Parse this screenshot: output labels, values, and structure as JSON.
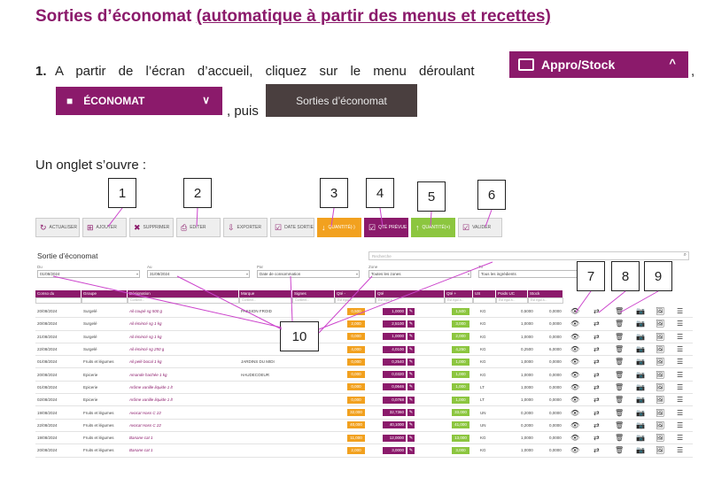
{
  "doc": {
    "title_plain": "Sorties d’économat ",
    "title_underlined": "(automatique à partir des menus et recettes)",
    "step_number": "1.",
    "step_text": "A partir de l’écran d’accueil, cliquez sur le menu déroulant",
    "comma": ",",
    "puis": ", puis",
    "onglet": "Un onglet s’ouvre :"
  },
  "menu_buttons": {
    "appro": "Appro/Stock",
    "appro_chevron": "^",
    "economat": "ÉCONOMAT",
    "economat_chevron": "∨",
    "sorties": "Sorties d’économat"
  },
  "callouts": [
    "1",
    "2",
    "3",
    "4",
    "5",
    "6",
    "7",
    "8",
    "9",
    "10"
  ],
  "toolbar": [
    {
      "label": "ACTUALISER",
      "glyph": "↻",
      "style": "grey"
    },
    {
      "label": "AJOUTER",
      "glyph": "⊞",
      "style": "grey"
    },
    {
      "label": "SUPPRIMER",
      "glyph": "✖",
      "style": "grey"
    },
    {
      "label": "EDITER",
      "glyph": "⎙",
      "style": "grey"
    },
    {
      "label": "EXPORTER",
      "glyph": "⇩",
      "style": "grey"
    },
    {
      "label": "DATE SORTIE",
      "glyph": "☑",
      "style": "grey"
    },
    {
      "label": "QUANTITÉ(-)",
      "glyph": "↓",
      "style": "orange"
    },
    {
      "label": "QTÉ PRÉVUE",
      "glyph": "☑",
      "style": "purple"
    },
    {
      "label": "QUANTITÉ(+)",
      "glyph": "↑",
      "style": "green"
    },
    {
      "label": "VALIDER",
      "glyph": "☑",
      "style": "grey"
    }
  ],
  "app": {
    "title": "Sortie d’économat",
    "search_placeholder": "Recherche",
    "filters": {
      "du_label": "Du",
      "du_value": "01/08/2024",
      "au_label": "Au",
      "au_value": "31/08/2024",
      "par_label": "Par",
      "par_value": "Date de consommation",
      "zone_label": "Zone",
      "zone_value": "Toutes les zones",
      "tri_label": "Tri",
      "tri_value": "Tous les ingrédients"
    },
    "columns": [
      "Conso du",
      "Groupe",
      "Désignation",
      "Marque",
      "Signes",
      "Qté -",
      "Qté",
      "Qté +",
      "US",
      "Poids UC",
      "Stock"
    ],
    "subfilters": [
      "",
      "",
      "Contient...",
      "Contient...",
      "Contient...",
      "Est égal à...",
      "Est égal à...",
      "Est égal à...",
      "",
      "Est égal à...",
      "Est égal à..."
    ],
    "rows": [
      {
        "date": "20/08/2024",
        "groupe": "Surgelé",
        "des": "Ail coupé sg 500 g",
        "marque": "PASSION FROID",
        "qm": "0,500",
        "q": "1,0000",
        "qp": "1,500",
        "us": "KG",
        "poids": "0,5000",
        "stock": "0,0000"
      },
      {
        "date": "20/08/2024",
        "groupe": "Surgelé",
        "des": "Ail émincé sg 1 kg",
        "marque": "",
        "qm": "2,000",
        "q": "2,5100",
        "qp": "3,000",
        "us": "KG",
        "poids": "1,0000",
        "stock": "0,0000"
      },
      {
        "date": "21/08/2024",
        "groupe": "Surgelé",
        "des": "Ail émincé sg 1 kg",
        "marque": "",
        "qm": "0,000",
        "q": "1,0000",
        "qp": "2,000",
        "us": "KG",
        "poids": "1,0000",
        "stock": "0,0000"
      },
      {
        "date": "22/08/2024",
        "groupe": "Surgelé",
        "des": "Ail émincé sg 250 g",
        "marque": "",
        "qm": "4,000",
        "q": "4,0100",
        "qp": "4,250",
        "us": "KG",
        "poids": "0,2500",
        "stock": "6,0000"
      },
      {
        "date": "01/08/2024",
        "groupe": "Fruits et légumes",
        "des": "Ail pelé bocal 1 kg",
        "marque": "JARDINS DU MIDI",
        "qm": "0,000",
        "q": "0,2540",
        "qp": "1,000",
        "us": "KG",
        "poids": "1,0000",
        "stock": "0,0000"
      },
      {
        "date": "20/08/2024",
        "groupe": "Epicerie",
        "des": "Amande hachée 1 kg",
        "marque": "HAUDECOEUR",
        "qm": "0,000",
        "q": "0,0320",
        "qp": "1,000",
        "us": "KG",
        "poids": "1,0000",
        "stock": "0,0000"
      },
      {
        "date": "01/08/2024",
        "groupe": "Epicerie",
        "des": "Arôme vanille liquide 1 lt",
        "marque": "",
        "qm": "0,000",
        "q": "0,0646",
        "qp": "1,000",
        "us": "LT",
        "poids": "1,0000",
        "stock": "0,0000"
      },
      {
        "date": "02/08/2024",
        "groupe": "Epicerie",
        "des": "Arôme vanille liquide 1 lt",
        "marque": "",
        "qm": "0,000",
        "q": "0,0768",
        "qp": "1,000",
        "us": "LT",
        "poids": "1,0000",
        "stock": "0,0000"
      },
      {
        "date": "19/08/2024",
        "groupe": "Fruits et légumes",
        "des": "Avocat Hass C 22",
        "marque": "",
        "qm": "32,000",
        "q": "32,7360",
        "qp": "33,000",
        "us": "UN",
        "poids": "0,2000",
        "stock": "0,0000"
      },
      {
        "date": "22/08/2024",
        "groupe": "Fruits et légumes",
        "des": "Avocat Hass C 22",
        "marque": "",
        "qm": "40,000",
        "q": "40,1000",
        "qp": "41,000",
        "us": "UN",
        "poids": "0,2000",
        "stock": "0,0000"
      },
      {
        "date": "19/08/2024",
        "groupe": "Fruits et légumes",
        "des": "Banane cat 1",
        "marque": "",
        "qm": "11,000",
        "q": "12,0000",
        "qp": "13,000",
        "us": "KG",
        "poids": "1,0000",
        "stock": "0,0000"
      },
      {
        "date": "20/08/2024",
        "groupe": "Fruits et légumes",
        "des": "Banane cat 1",
        "marque": "",
        "qm": "2,000",
        "q": "3,0000",
        "qp": "3,000",
        "us": "KG",
        "poids": "1,0000",
        "stock": "0,0000"
      }
    ],
    "row_actions": {
      "view": "👁",
      "transfer": "⇄",
      "delete": "🗑",
      "photo": "📷",
      "image": "🖼",
      "list": "☰"
    }
  },
  "colors": {
    "accent": "#8b1a6b",
    "orange": "#f2a11f",
    "green": "#8cc63f",
    "annotation": "#cc44cc"
  }
}
